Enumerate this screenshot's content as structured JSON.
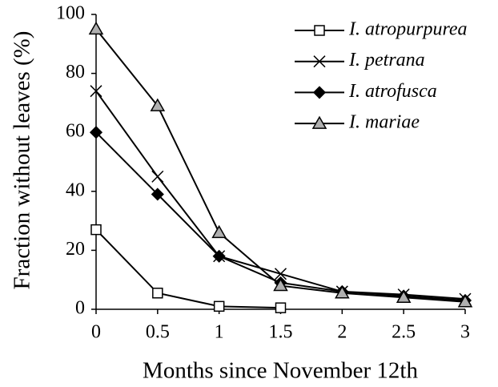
{
  "chart_data": {
    "type": "line",
    "xlabel": "Months since November 12th",
    "ylabel": "Fraction without leaves (%)",
    "x": [
      0,
      0.5,
      1,
      1.5,
      2,
      2.5,
      3
    ],
    "series": [
      {
        "name": "I. atropurpurea",
        "color": "#000000",
        "marker": "square",
        "marker_fill": "#ffffff",
        "values": [
          27,
          5.5,
          1,
          0.5,
          null,
          null,
          null
        ]
      },
      {
        "name": "I. petrana",
        "color": "#000000",
        "marker": "cross",
        "marker_fill": "#000000",
        "values": [
          74,
          45,
          18,
          12,
          6,
          5,
          3.5
        ]
      },
      {
        "name": "I. atrofusca",
        "color": "#000000",
        "marker": "diamond",
        "marker_fill": "#000000",
        "values": [
          60,
          39,
          18,
          9,
          6,
          4.5,
          3
        ]
      },
      {
        "name": "I. mariae",
        "color": "#000000",
        "marker": "triangle",
        "marker_fill": "#b0b0b0",
        "values": [
          95,
          69,
          26,
          8,
          5.5,
          4,
          2.5
        ]
      }
    ],
    "xlim": [
      0,
      3
    ],
    "xticks": [
      0,
      0.5,
      1,
      1.5,
      2,
      2.5,
      3
    ],
    "ylim": [
      0,
      100
    ],
    "yticks": [
      0,
      20,
      40,
      60,
      80,
      100
    ],
    "grid": false,
    "legend": "upper right"
  }
}
